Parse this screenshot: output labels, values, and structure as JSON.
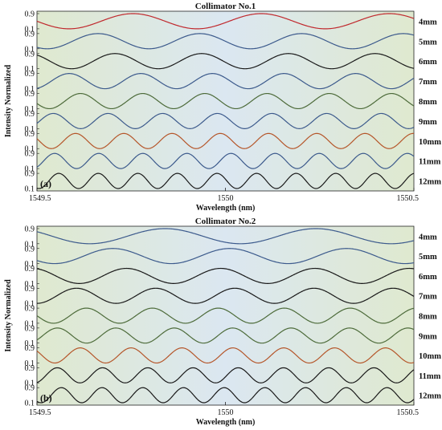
{
  "chart_data": [
    {
      "type": "line",
      "panel_label": "(a)",
      "title": "Collimator No.1",
      "xlabel": "Wavelength (nm)",
      "ylabel": "Intensity Normalized",
      "xlim": [
        1549.5,
        1550.5
      ],
      "x_ticks": [
        "1549.5",
        "1550",
        "1550.5"
      ],
      "y_ticks": [
        "0.9",
        "0.1"
      ],
      "ylim": [
        0.1,
        0.9
      ],
      "grid": false,
      "series": [
        {
          "name": "4mm",
          "color": "#c0282d",
          "period_nm": 0.34,
          "phase": 0.25
        },
        {
          "name": "5mm",
          "color": "#3c5a8c",
          "period_nm": 0.27,
          "phase": 0.4
        },
        {
          "name": "6mm",
          "color": "#1a1a1a",
          "period_nm": 0.23,
          "phase": 0.1
        },
        {
          "name": "7mm",
          "color": "#3c5a8c",
          "period_nm": 0.19,
          "phase": 0.55
        },
        {
          "name": "8mm",
          "color": "#4d6b3a",
          "period_nm": 0.165,
          "phase": 0.3
        },
        {
          "name": "9mm",
          "color": "#3c5a8c",
          "period_nm": 0.145,
          "phase": 0.7
        },
        {
          "name": "10mm",
          "color": "#b5562a",
          "period_nm": 0.128,
          "phase": 0.2
        },
        {
          "name": "11mm",
          "color": "#3c5a8c",
          "period_nm": 0.117,
          "phase": 0.6
        },
        {
          "name": "12mm",
          "color": "#1a1a1a",
          "period_nm": 0.105,
          "phase": 0.45
        }
      ]
    },
    {
      "type": "line",
      "panel_label": "(b)",
      "title": "Collimator No.2",
      "xlabel": "Wavelength (nm)",
      "ylabel": "Intensity Normalized",
      "xlim": [
        1549.5,
        1550.5
      ],
      "x_ticks": [
        "1549.5",
        "1550",
        "1550.5"
      ],
      "y_ticks": [
        "0.9",
        "0.1"
      ],
      "ylim": [
        0.1,
        0.9
      ],
      "grid": false,
      "series": [
        {
          "name": "4mm",
          "color": "#3c5a8c",
          "period_nm": 0.4,
          "phase": 0.15
        },
        {
          "name": "5mm",
          "color": "#3c5a8c",
          "period_nm": 0.31,
          "phase": 0.35
        },
        {
          "name": "6mm",
          "color": "#1a1a1a",
          "period_nm": 0.25,
          "phase": 0.05
        },
        {
          "name": "7mm",
          "color": "#1a1a1a",
          "period_nm": 0.21,
          "phase": 0.5
        },
        {
          "name": "8mm",
          "color": "#4d6b3a",
          "period_nm": 0.175,
          "phase": 0.25
        },
        {
          "name": "9mm",
          "color": "#4d6b3a",
          "period_nm": 0.155,
          "phase": 0.65
        },
        {
          "name": "10mm",
          "color": "#b5562a",
          "period_nm": 0.135,
          "phase": 0.15
        },
        {
          "name": "11mm",
          "color": "#1a1a1a",
          "period_nm": 0.12,
          "phase": 0.55
        },
        {
          "name": "12mm",
          "color": "#1a1a1a",
          "period_nm": 0.108,
          "phase": 0.4
        }
      ]
    }
  ]
}
